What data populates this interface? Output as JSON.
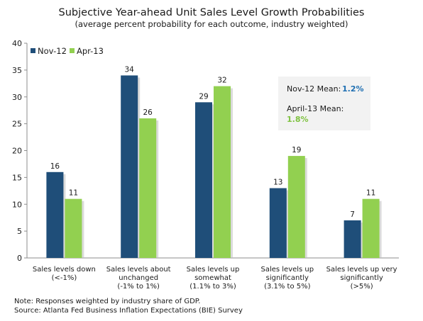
{
  "colors": {
    "nov": "#1f4e79",
    "apr": "#92d050",
    "annotation_box": "#f2f2f2",
    "nov_text": "#1f6fb2",
    "apr_text": "#7fc241"
  },
  "chart_data": {
    "type": "bar",
    "title": "Subjective Year-ahead Unit Sales Level Growth Probabilities",
    "subtitle": "(average percent probability for each outcome, industry weighted)",
    "xlabel": "",
    "ylabel": "",
    "ylim": [
      0,
      40
    ],
    "yticks": [
      "0",
      "5",
      "10",
      "15",
      "20",
      "25",
      "30",
      "35",
      "40"
    ],
    "grid": false,
    "legend_position": "top-left",
    "categories": [
      [
        "Sales levels down",
        "(<-1%)"
      ],
      [
        "Sales levels about",
        "unchanged",
        "(-1% to 1%)"
      ],
      [
        "Sales levels up",
        "somewhat",
        "(1.1% to 3%)"
      ],
      [
        "Sales levels up",
        "significantly",
        "(3.1% to 5%)"
      ],
      [
        "Sales levels up very",
        "significantly",
        "(>5%)"
      ]
    ],
    "series": [
      {
        "name": "Nov-12",
        "values": [
          16,
          34,
          29,
          13,
          7
        ],
        "labels": [
          "16",
          "34",
          "29",
          "13",
          "7"
        ]
      },
      {
        "name": "Apr-13",
        "values": [
          11,
          26,
          32,
          19,
          11
        ],
        "labels": [
          "11",
          "26",
          "32",
          "19",
          "11"
        ]
      }
    ],
    "annotations": {
      "nov_label": "Nov-12 Mean:",
      "nov_value": "1.2%",
      "apr_label": "April-13 Mean:",
      "apr_value": "1.8%"
    }
  },
  "notes": {
    "line1": "Note: Responses weighted by industry share of GDP.",
    "line2": "Source: Atlanta Fed Business Inflation Expectations (BIE) Survey"
  }
}
